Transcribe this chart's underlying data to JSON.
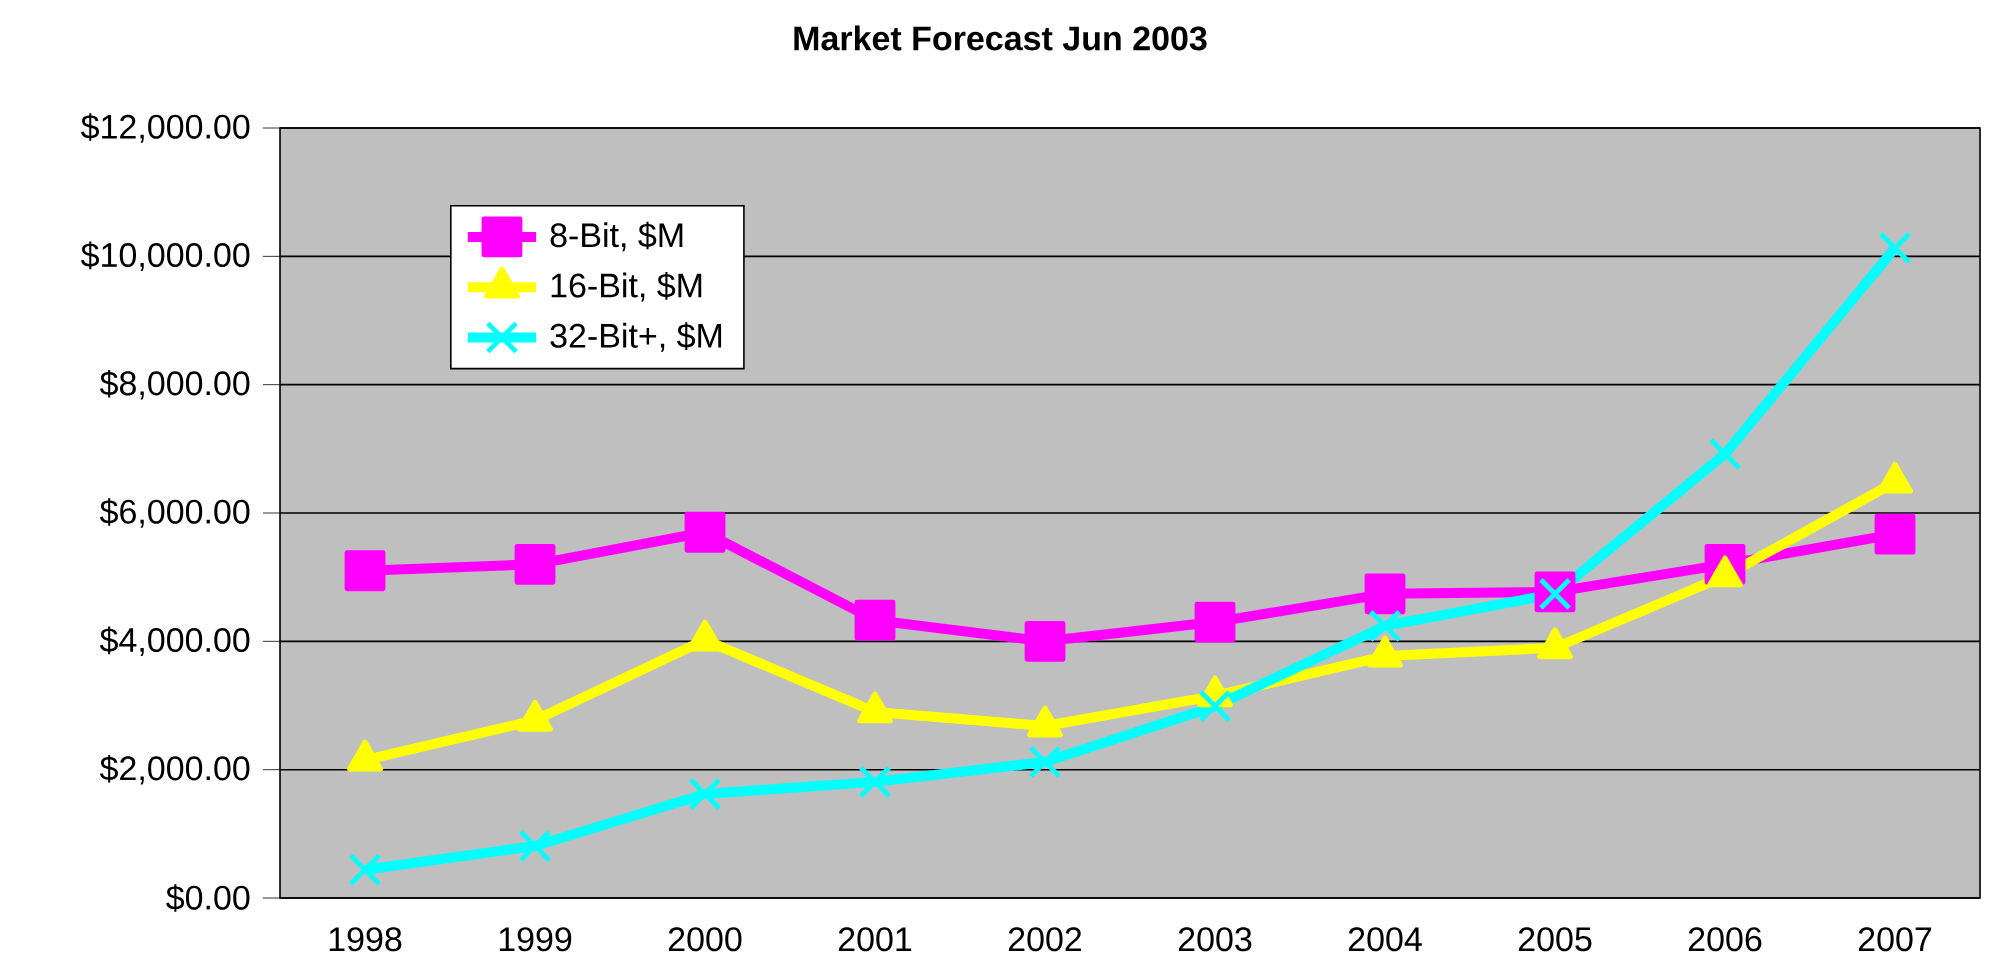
{
  "chart_data": {
    "type": "line",
    "title": "Market Forecast Jun 2003",
    "categories": [
      "1998",
      "1999",
      "2000",
      "2001",
      "2002",
      "2003",
      "2004",
      "2005",
      "2006",
      "2007"
    ],
    "series": [
      {
        "name": "8-Bit, $M",
        "color": "#ff00ff",
        "marker": "square",
        "values": [
          5100,
          5200,
          5700,
          4330,
          4000,
          4300,
          4740,
          4770,
          5200,
          5670
        ]
      },
      {
        "name": "16-Bit, $M",
        "color": "#ffff00",
        "marker": "triangle",
        "values": [
          2150,
          2770,
          4020,
          2900,
          2680,
          3150,
          3770,
          3900,
          5020,
          6480
        ]
      },
      {
        "name": "32-Bit+, $M",
        "color": "#00ffff",
        "marker": "cross",
        "values": [
          440,
          810,
          1620,
          1810,
          2120,
          2990,
          4240,
          4740,
          6920,
          10130
        ]
      }
    ],
    "ylim": [
      0,
      12000
    ],
    "yticks": [
      {
        "value": 0,
        "label": "$0.00"
      },
      {
        "value": 2000,
        "label": "$2,000.00"
      },
      {
        "value": 4000,
        "label": "$4,000.00"
      },
      {
        "value": 6000,
        "label": "$6,000.00"
      },
      {
        "value": 8000,
        "label": "$8,000.00"
      },
      {
        "value": 10000,
        "label": "$10,000.00"
      },
      {
        "value": 12000,
        "label": "$12,000.00"
      }
    ],
    "grid": "y",
    "legend": "top left",
    "line_style": "solid"
  }
}
